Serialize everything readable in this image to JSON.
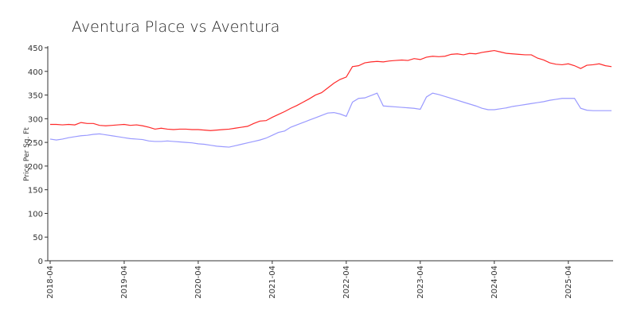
{
  "chart_data": {
    "type": "line",
    "title": "Aventura Place vs Aventura",
    "y_label": "Price Per Sq. Ft",
    "x": [
      "2018-04",
      "2018-05",
      "2018-06",
      "2018-07",
      "2018-08",
      "2018-09",
      "2018-10",
      "2018-11",
      "2018-12",
      "2019-01",
      "2019-02",
      "2019-03",
      "2019-04",
      "2019-05",
      "2019-06",
      "2019-07",
      "2019-08",
      "2019-09",
      "2019-10",
      "2019-11",
      "2019-12",
      "2020-01",
      "2020-02",
      "2020-03",
      "2020-04",
      "2020-05",
      "2020-06",
      "2020-07",
      "2020-08",
      "2020-09",
      "2020-10",
      "2020-11",
      "2020-12",
      "2021-01",
      "2021-02",
      "2021-03",
      "2021-04",
      "2021-05",
      "2021-06",
      "2021-07",
      "2021-08",
      "2021-09",
      "2021-10",
      "2021-11",
      "2021-12",
      "2022-01",
      "2022-02",
      "2022-03",
      "2022-04",
      "2022-05",
      "2022-06",
      "2022-07",
      "2022-08",
      "2022-09",
      "2022-10",
      "2022-11",
      "2022-12",
      "2023-01",
      "2023-02",
      "2023-03",
      "2023-04",
      "2023-05",
      "2023-06",
      "2023-07",
      "2023-08",
      "2023-09",
      "2023-10",
      "2023-11",
      "2023-12",
      "2024-01",
      "2024-02",
      "2024-03",
      "2024-04",
      "2024-05",
      "2024-06",
      "2024-07",
      "2024-08",
      "2024-09",
      "2024-10",
      "2024-11",
      "2024-12",
      "2025-01",
      "2025-02",
      "2025-03",
      "2025-04",
      "2025-05",
      "2025-06",
      "2025-07",
      "2025-08",
      "2025-09",
      "2025-10",
      "2025-11"
    ],
    "xticks": [
      "2018-04",
      "2019-04",
      "2020-04",
      "2021-04",
      "2022-04",
      "2023-04",
      "2024-04",
      "2025-04"
    ],
    "series": [
      {
        "color": "#ff2a2a",
        "values": [
          288,
          288,
          287,
          288,
          287,
          292,
          290,
          290,
          286,
          285,
          286,
          287,
          288,
          286,
          287,
          285,
          282,
          278,
          280,
          278,
          277,
          278,
          278,
          277,
          277,
          276,
          275,
          276,
          277,
          278,
          280,
          282,
          284,
          290,
          295,
          296,
          303,
          309,
          315,
          322,
          328,
          335,
          342,
          350,
          355,
          365,
          375,
          383,
          388,
          410,
          412,
          418,
          420,
          421,
          420,
          422,
          423,
          424,
          423,
          427,
          425,
          430,
          432,
          431,
          432,
          436,
          437,
          435,
          438,
          437,
          440,
          442,
          444,
          441,
          438,
          437,
          436,
          435,
          435,
          428,
          424,
          418,
          415,
          414,
          416,
          412,
          406,
          413,
          414,
          416,
          412,
          410
        ]
      },
      {
        "color": "#9a9aff",
        "values": [
          257,
          255,
          257,
          260,
          262,
          264,
          265,
          267,
          268,
          266,
          264,
          262,
          260,
          258,
          257,
          256,
          253,
          252,
          252,
          253,
          252,
          251,
          250,
          249,
          247,
          246,
          244,
          242,
          241,
          240,
          243,
          246,
          249,
          252,
          255,
          259,
          265,
          271,
          274,
          282,
          287,
          292,
          297,
          302,
          307,
          312,
          313,
          310,
          305,
          335,
          343,
          344,
          349,
          354,
          327,
          326,
          325,
          324,
          323,
          322,
          320,
          346,
          354,
          351,
          347,
          343,
          339,
          335,
          331,
          327,
          322,
          319,
          319,
          321,
          323,
          326,
          328,
          330,
          332,
          334,
          336,
          339,
          341,
          343,
          343,
          343,
          322,
          318,
          317,
          317,
          317,
          317
        ]
      }
    ],
    "ylim": [
      0,
      450
    ],
    "yticks": [
      0,
      50,
      100,
      150,
      200,
      250,
      300,
      350,
      400,
      450
    ]
  }
}
